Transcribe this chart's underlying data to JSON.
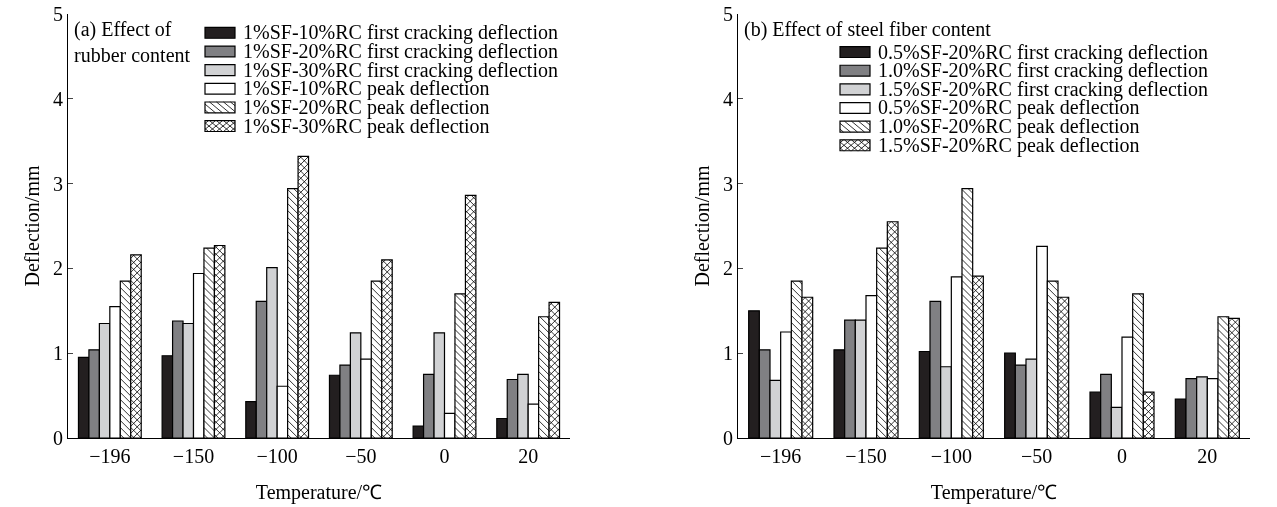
{
  "chart_data": [
    {
      "type": "bar",
      "title": "(a) Effect of rubber content",
      "xlabel": "Temperature/℃",
      "ylabel": "Deflection/mm",
      "categories": [
        "−196",
        "−150",
        "−100",
        "−50",
        "0",
        "20"
      ],
      "series": [
        {
          "name": "1%SF-10%RC first cracking deflection",
          "color": "#231f20",
          "values": [
            0.95,
            0.97,
            0.43,
            0.74,
            0.14,
            0.23
          ]
        },
        {
          "name": "1%SF-20%RC first cracking deflection",
          "color": "#808083",
          "values": [
            1.04,
            1.38,
            1.61,
            0.86,
            0.75,
            0.69
          ]
        },
        {
          "name": "1%SF-30%RC first cracking deflection",
          "color": "#d1d2d4",
          "values": [
            1.35,
            1.35,
            2.01,
            1.24,
            1.24,
            0.75
          ]
        },
        {
          "name": "1%SF-10%RC peak deflection",
          "color": "#ffffff",
          "values": [
            1.55,
            1.94,
            0.61,
            0.93,
            0.29,
            0.4
          ]
        },
        {
          "name": "1%SF-20%RC peak deflection",
          "color": "#ffffff",
          "values": [
            1.85,
            2.24,
            2.94,
            1.85,
            1.7,
            1.43
          ]
        },
        {
          "name": "1%SF-30%RC peak deflection",
          "color": "#ffffff",
          "values": [
            2.16,
            2.27,
            3.32,
            2.1,
            2.86,
            1.6
          ]
        }
      ],
      "ylim": [
        0,
        5
      ],
      "yticks": [
        0,
        1,
        2,
        3,
        4,
        5
      ],
      "legend": "top right"
    },
    {
      "type": "bar",
      "title": "(b) Effect of steel fiber content",
      "xlabel": "Temperature/℃",
      "ylabel": "Deflection/mm",
      "categories": [
        "−196",
        "−150",
        "−100",
        "−50",
        "0",
        "20"
      ],
      "series": [
        {
          "name": "0.5%SF-20%RC first cracking deflection",
          "color": "#231f20",
          "values": [
            1.5,
            1.04,
            1.02,
            1.0,
            0.54,
            0.46
          ]
        },
        {
          "name": "1.0%SF-20%RC first cracking deflection",
          "color": "#808083",
          "values": [
            1.04,
            1.39,
            1.61,
            0.86,
            0.75,
            0.7
          ]
        },
        {
          "name": "1.5%SF-20%RC first cracking deflection",
          "color": "#d1d2d4",
          "values": [
            0.68,
            1.39,
            0.84,
            0.93,
            0.36,
            0.72
          ]
        },
        {
          "name": "0.5%SF-20%RC peak deflection",
          "color": "#ffffff",
          "values": [
            1.25,
            1.68,
            1.9,
            2.26,
            1.19,
            0.7
          ]
        },
        {
          "name": "1.0%SF-20%RC peak deflection",
          "color": "#ffffff",
          "values": [
            1.85,
            2.24,
            2.94,
            1.85,
            1.7,
            1.43
          ]
        },
        {
          "name": "1.5%SF-20%RC peak deflection",
          "color": "#ffffff",
          "values": [
            1.66,
            2.55,
            1.91,
            1.66,
            0.54,
            1.41
          ]
        }
      ],
      "ylim": [
        0,
        5
      ],
      "yticks": [
        0,
        1,
        2,
        3,
        4,
        5
      ],
      "legend": "top right"
    }
  ]
}
